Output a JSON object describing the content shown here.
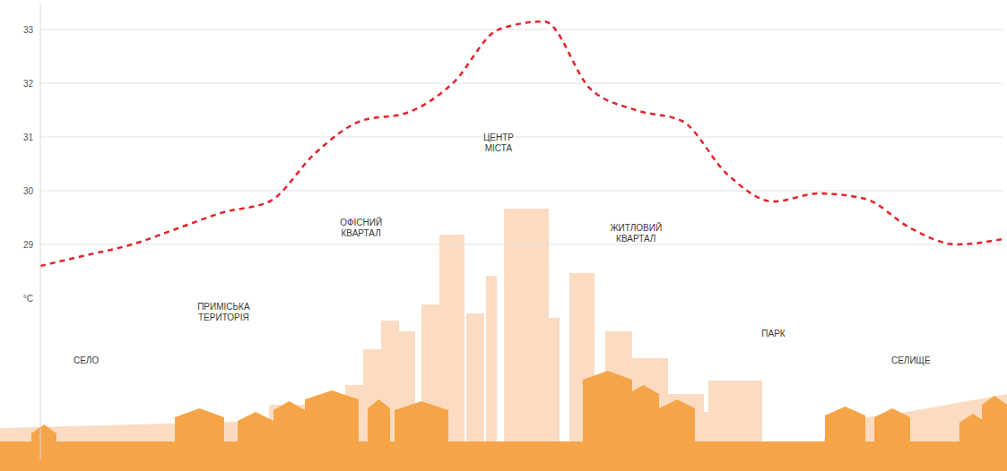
{
  "chart_data": {
    "type": "line",
    "categories": [
      null,
      "СЕЛО",
      null,
      null,
      "ПРИМІСЬКА ТЕРИТОРІЯ",
      null,
      null,
      "ОФІСНИЙ КВАРТАЛ",
      null,
      null,
      "ЦЕНТР МІСТА",
      null,
      null,
      "ЖИТЛОВИЙ КВАРТАЛ",
      null,
      null,
      "ПАРК",
      null,
      null,
      "СЕЛИЩЕ",
      null,
      null
    ],
    "values": [
      28.6,
      28.8,
      29.0,
      29.3,
      29.6,
      29.8,
      30.7,
      31.3,
      31.45,
      32.0,
      33.0,
      33.15,
      31.9,
      31.5,
      31.3,
      30.3,
      29.8,
      29.95,
      29.85,
      29.3,
      29.0,
      29.1
    ],
    "color": "#e3242b",
    "line_style": "dashed",
    "ylim": [
      25,
      33.5
    ],
    "yticks": [
      {
        "value": 28,
        "label": "°C"
      },
      29,
      30,
      31,
      32,
      33
    ],
    "grid": true
  }
}
